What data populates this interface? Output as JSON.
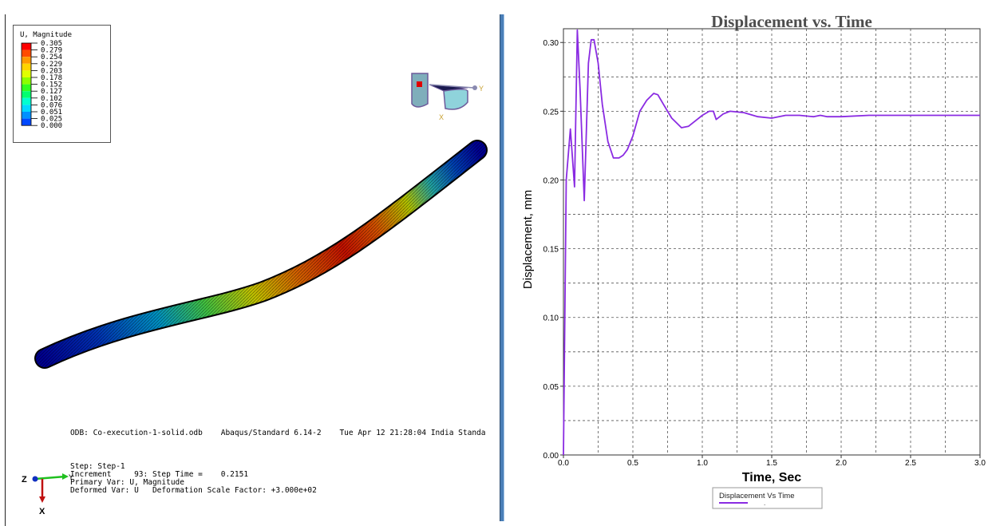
{
  "viewport": {
    "legend": {
      "title": "U, Magnitude",
      "levels": [
        "0.305",
        "0.279",
        "0.254",
        "0.229",
        "0.203",
        "0.178",
        "0.152",
        "0.127",
        "0.102",
        "0.076",
        "0.051",
        "0.025",
        "0.000"
      ],
      "colors": [
        "#ff0000",
        "#ff4c00",
        "#ff9a00",
        "#ffd400",
        "#e0ff00",
        "#8cff00",
        "#30ff20",
        "#00ff70",
        "#00ffd0",
        "#00d8ff",
        "#0090ff",
        "#0048ff",
        "#0000ff"
      ]
    },
    "triad_top": {
      "y_label": "Y",
      "x_label": "X"
    },
    "odb_line": "ODB: Co-execution-1-solid.odb    Abaqus/Standard 6.14-2    Tue Apr 12 21:28:04 India Standa",
    "step_line": "Step: Step-1",
    "increment_line": "Increment     93: Step Time =    0.2151",
    "primary_var_line": "Primary Var: U, Magnitude",
    "deformed_var_line": "Deformed Var: U   Deformation Scale Factor: +3.000e+02",
    "triad_bottom": {
      "z_label": "Z",
      "y_label": "Y",
      "x_label": "X"
    }
  },
  "chart_data": {
    "type": "line",
    "title": "Displacement vs. Time",
    "xlabel": "Time, Sec",
    "ylabel": "Displacement, mm",
    "xlim": [
      0,
      3.0
    ],
    "ylim": [
      0,
      0.31
    ],
    "xticks": [
      "0.0",
      "0.5",
      "1.0",
      "1.5",
      "2.0",
      "2.5",
      "3.0"
    ],
    "yticks": [
      "0.00",
      "0.05",
      "0.10",
      "0.15",
      "0.20",
      "0.25",
      "0.30"
    ],
    "grid": true,
    "legend_position": "bottom-center",
    "series": [
      {
        "name": "Displacement Vs Time",
        "color": "#8a2be2",
        "x": [
          0.0,
          0.02,
          0.05,
          0.08,
          0.1,
          0.12,
          0.15,
          0.18,
          0.2,
          0.22,
          0.25,
          0.28,
          0.32,
          0.36,
          0.4,
          0.43,
          0.46,
          0.5,
          0.55,
          0.6,
          0.65,
          0.68,
          0.72,
          0.78,
          0.85,
          0.9,
          0.95,
          1.0,
          1.05,
          1.08,
          1.1,
          1.15,
          1.2,
          1.3,
          1.4,
          1.5,
          1.6,
          1.7,
          1.8,
          1.85,
          1.9,
          2.0,
          2.2,
          2.5,
          2.8,
          3.0
        ],
        "y": [
          0.0,
          0.2,
          0.237,
          0.195,
          0.309,
          0.265,
          0.185,
          0.285,
          0.302,
          0.302,
          0.285,
          0.255,
          0.228,
          0.216,
          0.216,
          0.218,
          0.222,
          0.232,
          0.25,
          0.258,
          0.263,
          0.262,
          0.255,
          0.245,
          0.238,
          0.239,
          0.243,
          0.247,
          0.25,
          0.25,
          0.244,
          0.248,
          0.25,
          0.249,
          0.246,
          0.245,
          0.247,
          0.247,
          0.246,
          0.247,
          0.246,
          0.246,
          0.247,
          0.247,
          0.247,
          0.247
        ]
      }
    ],
    "legend_second_entry": "."
  }
}
